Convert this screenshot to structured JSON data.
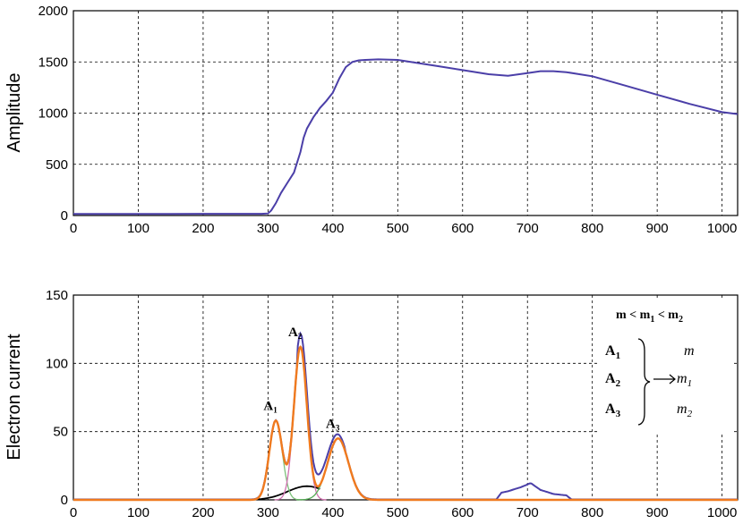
{
  "colors": {
    "signal": "#4b3fa8",
    "fit": "#f07a1e",
    "peak1": "#7cc07a",
    "peak2": "#d070b0",
    "peak3": "#55aa55",
    "black_peak": "#000000",
    "grid": "#000000"
  },
  "chart_data": [
    {
      "type": "line",
      "title": "",
      "xlabel": "",
      "ylabel": "Amplitude",
      "xlim": [
        0,
        1024
      ],
      "ylim": [
        0,
        2000
      ],
      "grid": true,
      "x_ticks": [
        "0",
        "100",
        "200",
        "300",
        "400",
        "500",
        "600",
        "700",
        "800",
        "900",
        "1000"
      ],
      "y_ticks": [
        "0",
        "500",
        "1000",
        "1500",
        "2000"
      ],
      "series": [
        {
          "x": [
            0,
            50,
            100,
            150,
            200,
            250,
            290,
            300,
            305,
            312,
            320,
            330,
            340,
            350,
            355,
            360,
            370,
            380,
            390,
            400,
            410,
            420,
            430,
            440,
            450,
            470,
            500,
            530,
            560,
            600,
            640,
            670,
            700,
            720,
            740,
            760,
            800,
            850,
            900,
            950,
            1000,
            1024
          ],
          "y": [
            15,
            15,
            16,
            16,
            17,
            17,
            17,
            20,
            50,
            120,
            220,
            320,
            420,
            620,
            760,
            850,
            960,
            1050,
            1120,
            1200,
            1340,
            1450,
            1500,
            1515,
            1520,
            1525,
            1520,
            1490,
            1460,
            1420,
            1380,
            1365,
            1390,
            1410,
            1410,
            1400,
            1360,
            1270,
            1180,
            1090,
            1010,
            990
          ]
        }
      ]
    },
    {
      "type": "line",
      "title": "",
      "xlabel": "",
      "ylabel": "Electron current",
      "xlim": [
        0,
        1024
      ],
      "ylim": [
        0,
        150
      ],
      "grid": true,
      "x_ticks": [
        "0",
        "100",
        "200",
        "300",
        "400",
        "500",
        "600",
        "700",
        "800",
        "900",
        "1000"
      ],
      "y_ticks": [
        "0",
        "50",
        "100",
        "150"
      ],
      "peaks": [
        {
          "label": "A",
          "sub": "1",
          "center": 312,
          "amplitude": 58,
          "width": 10
        },
        {
          "label": "A",
          "sub": "2",
          "center": 350,
          "amplitude": 112,
          "width": 10
        },
        {
          "label": "A",
          "sub": "3",
          "center": 408,
          "amplitude": 45,
          "width": 16
        }
      ],
      "background_peak": {
        "center": 360,
        "amplitude": 10,
        "width": 30
      },
      "signal_extra": [
        {
          "x": 660,
          "y": 5
        },
        {
          "x": 670,
          "y": 6
        },
        {
          "x": 690,
          "y": 9
        },
        {
          "x": 705,
          "y": 12
        },
        {
          "x": 720,
          "y": 7
        },
        {
          "x": 740,
          "y": 4
        },
        {
          "x": 760,
          "y": 3
        }
      ],
      "legend_box": {
        "relation": "m < m",
        "rel_sub1": "1",
        "rel_mid": " < m",
        "rel_sub2": "2",
        "rows": [
          {
            "a": "A",
            "a_sub": "1",
            "m": "m",
            "m_sub": ""
          },
          {
            "a": "A",
            "a_sub": "2",
            "m": "m",
            "m_sub": "1"
          },
          {
            "a": "A",
            "a_sub": "3",
            "m": "m",
            "m_sub": "2"
          }
        ]
      }
    }
  ]
}
